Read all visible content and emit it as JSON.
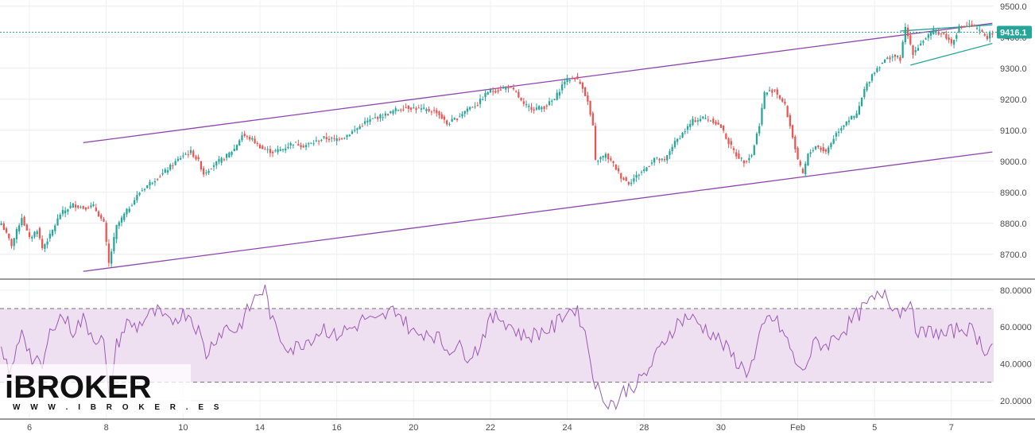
{
  "chart_data": [
    {
      "type": "candlestick",
      "panel": "price",
      "ylim": [
        8620,
        9520
      ],
      "yticks": [
        "9500.0",
        "9400.0",
        "9300.0",
        "9200.0",
        "9100.0",
        "9000.0",
        "8900.0",
        "8800.0",
        "8700.0"
      ],
      "ytick_values": [
        9500,
        9400,
        9300,
        9200,
        9100,
        9000,
        8900,
        8800,
        8700
      ],
      "last_price": 9416.1,
      "last_price_label": "9416.1",
      "up_color": "#26a69a",
      "down_color": "#ef5350",
      "channel_color": "#8e44ad",
      "wedge_color": "#26a69a",
      "price_line_color": "#26a69a",
      "anchors": [
        [
          0,
          8800
        ],
        [
          4,
          8730
        ],
        [
          8,
          8820
        ],
        [
          11,
          8750
        ],
        [
          14,
          8780
        ],
        [
          16,
          8720
        ],
        [
          19,
          8760
        ],
        [
          23,
          8830
        ],
        [
          28,
          8860
        ],
        [
          32,
          8850
        ],
        [
          36,
          8855
        ],
        [
          40,
          8800
        ],
        [
          42,
          8670
        ],
        [
          45,
          8790
        ],
        [
          49,
          8840
        ],
        [
          54,
          8900
        ],
        [
          58,
          8930
        ],
        [
          63,
          8960
        ],
        [
          67,
          8990
        ],
        [
          71,
          9020
        ],
        [
          74,
          9030
        ],
        [
          77,
          9000
        ],
        [
          79,
          8960
        ],
        [
          83,
          8990
        ],
        [
          87,
          9010
        ],
        [
          91,
          9040
        ],
        [
          94,
          9085
        ],
        [
          98,
          9070
        ],
        [
          102,
          9040
        ],
        [
          106,
          9030
        ],
        [
          110,
          9040
        ],
        [
          114,
          9060
        ],
        [
          118,
          9050
        ],
        [
          122,
          9060
        ],
        [
          126,
          9075
        ],
        [
          130,
          9070
        ],
        [
          134,
          9080
        ],
        [
          138,
          9100
        ],
        [
          142,
          9125
        ],
        [
          146,
          9140
        ],
        [
          150,
          9150
        ],
        [
          154,
          9165
        ],
        [
          158,
          9175
        ],
        [
          162,
          9170
        ],
        [
          166,
          9165
        ],
        [
          170,
          9160
        ],
        [
          174,
          9120
        ],
        [
          178,
          9140
        ],
        [
          182,
          9170
        ],
        [
          186,
          9185
        ],
        [
          190,
          9225
        ],
        [
          194,
          9230
        ],
        [
          198,
          9240
        ],
        [
          201,
          9220
        ],
        [
          204,
          9180
        ],
        [
          208,
          9170
        ],
        [
          212,
          9175
        ],
        [
          216,
          9200
        ],
        [
          220,
          9260
        ],
        [
          224,
          9270
        ],
        [
          227,
          9240
        ],
        [
          229,
          9190
        ],
        [
          231,
          9110
        ],
        [
          232,
          9000
        ],
        [
          236,
          9020
        ],
        [
          239,
          8990
        ],
        [
          242,
          8950
        ],
        [
          245,
          8930
        ],
        [
          249,
          8960
        ],
        [
          252,
          8980
        ],
        [
          255,
          9010
        ],
        [
          259,
          9000
        ],
        [
          262,
          9050
        ],
        [
          266,
          9090
        ],
        [
          270,
          9130
        ],
        [
          274,
          9140
        ],
        [
          278,
          9130
        ],
        [
          281,
          9110
        ],
        [
          284,
          9060
        ],
        [
          287,
          9020
        ],
        [
          290,
          9000
        ],
        [
          293,
          9020
        ],
        [
          296,
          9120
        ],
        [
          298,
          9220
        ],
        [
          302,
          9230
        ],
        [
          306,
          9180
        ],
        [
          309,
          9080
        ],
        [
          311,
          9000
        ],
        [
          313,
          8960
        ],
        [
          315,
          9020
        ],
        [
          318,
          9050
        ],
        [
          322,
          9030
        ],
        [
          326,
          9090
        ],
        [
          330,
          9130
        ],
        [
          334,
          9150
        ],
        [
          337,
          9230
        ],
        [
          340,
          9280
        ],
        [
          344,
          9320
        ],
        [
          348,
          9340
        ],
        [
          351,
          9330
        ],
        [
          353,
          9430
        ],
        [
          356,
          9350
        ],
        [
          360,
          9390
        ],
        [
          364,
          9420
        ],
        [
          368,
          9410
        ],
        [
          371,
          9380
        ],
        [
          374,
          9430
        ],
        [
          378,
          9440
        ],
        [
          382,
          9420
        ],
        [
          385,
          9400
        ],
        [
          387,
          9416
        ]
      ],
      "channel_upper": [
        [
          32,
          9060
        ],
        [
          387,
          9445
        ]
      ],
      "channel_lower": [
        [
          32,
          8645
        ],
        [
          387,
          9030
        ]
      ],
      "wedge_upper": [
        [
          351,
          9420
        ],
        [
          387,
          9440
        ]
      ],
      "wedge_lower": [
        [
          355,
          9310
        ],
        [
          387,
          9380
        ]
      ]
    },
    {
      "type": "line",
      "panel": "rsi",
      "ylim": [
        10,
        86
      ],
      "yticks": [
        "80.0000",
        "60.0000",
        "40.0000",
        "20.0000"
      ],
      "ytick_values": [
        80,
        60,
        40,
        20
      ],
      "upper_band": 70,
      "lower_band": 30,
      "line_color": "#9b59b6",
      "band_color": "#efe0f1",
      "anchors": [
        [
          0,
          45
        ],
        [
          4,
          35
        ],
        [
          8,
          60
        ],
        [
          12,
          42
        ],
        [
          16,
          38
        ],
        [
          20,
          62
        ],
        [
          24,
          66
        ],
        [
          28,
          58
        ],
        [
          32,
          64
        ],
        [
          36,
          55
        ],
        [
          40,
          52
        ],
        [
          42,
          20
        ],
        [
          45,
          50
        ],
        [
          49,
          62
        ],
        [
          53,
          60
        ],
        [
          57,
          66
        ],
        [
          61,
          68
        ],
        [
          65,
          62
        ],
        [
          69,
          66
        ],
        [
          73,
          68
        ],
        [
          77,
          58
        ],
        [
          80,
          45
        ],
        [
          84,
          55
        ],
        [
          88,
          60
        ],
        [
          92,
          58
        ],
        [
          96,
          68
        ],
        [
          100,
          78
        ],
        [
          103,
          80
        ],
        [
          106,
          62
        ],
        [
          110,
          52
        ],
        [
          114,
          48
        ],
        [
          118,
          52
        ],
        [
          122,
          55
        ],
        [
          126,
          60
        ],
        [
          130,
          55
        ],
        [
          134,
          58
        ],
        [
          138,
          60
        ],
        [
          142,
          65
        ],
        [
          146,
          62
        ],
        [
          150,
          66
        ],
        [
          154,
          70
        ],
        [
          158,
          62
        ],
        [
          162,
          55
        ],
        [
          166,
          58
        ],
        [
          170,
          55
        ],
        [
          174,
          48
        ],
        [
          178,
          50
        ],
        [
          182,
          45
        ],
        [
          186,
          48
        ],
        [
          190,
          62
        ],
        [
          194,
          66
        ],
        [
          198,
          62
        ],
        [
          201,
          58
        ],
        [
          204,
          55
        ],
        [
          208,
          56
        ],
        [
          212,
          58
        ],
        [
          216,
          60
        ],
        [
          220,
          68
        ],
        [
          224,
          70
        ],
        [
          227,
          62
        ],
        [
          229,
          50
        ],
        [
          231,
          35
        ],
        [
          234,
          22
        ],
        [
          237,
          20
        ],
        [
          240,
          18
        ],
        [
          243,
          25
        ],
        [
          246,
          28
        ],
        [
          249,
          30
        ],
        [
          252,
          35
        ],
        [
          256,
          45
        ],
        [
          260,
          55
        ],
        [
          264,
          62
        ],
        [
          268,
          66
        ],
        [
          272,
          62
        ],
        [
          276,
          58
        ],
        [
          279,
          55
        ],
        [
          282,
          50
        ],
        [
          285,
          45
        ],
        [
          288,
          40
        ],
        [
          291,
          36
        ],
        [
          294,
          42
        ],
        [
          297,
          58
        ],
        [
          300,
          66
        ],
        [
          303,
          62
        ],
        [
          306,
          55
        ],
        [
          309,
          45
        ],
        [
          312,
          35
        ],
        [
          315,
          42
        ],
        [
          318,
          52
        ],
        [
          322,
          50
        ],
        [
          326,
          55
        ],
        [
          330,
          60
        ],
        [
          334,
          66
        ],
        [
          338,
          72
        ],
        [
          342,
          76
        ],
        [
          345,
          80
        ],
        [
          348,
          72
        ],
        [
          351,
          68
        ],
        [
          354,
          75
        ],
        [
          357,
          60
        ],
        [
          360,
          56
        ],
        [
          364,
          58
        ],
        [
          368,
          55
        ],
        [
          372,
          58
        ],
        [
          376,
          60
        ],
        [
          380,
          57
        ],
        [
          384,
          48
        ],
        [
          387,
          50
        ]
      ]
    }
  ],
  "x_axis": {
    "labels": [
      "6",
      "8",
      "10",
      "14",
      "16",
      "20",
      "22",
      "24",
      "28",
      "30",
      "Feb",
      "5",
      "7"
    ],
    "positions": [
      11,
      41,
      71,
      101,
      131,
      161,
      191,
      221,
      251,
      281,
      311,
      341,
      371
    ]
  },
  "logo": {
    "brand": "iBROKER",
    "url": "W W W . I B R O K E R . E S"
  }
}
